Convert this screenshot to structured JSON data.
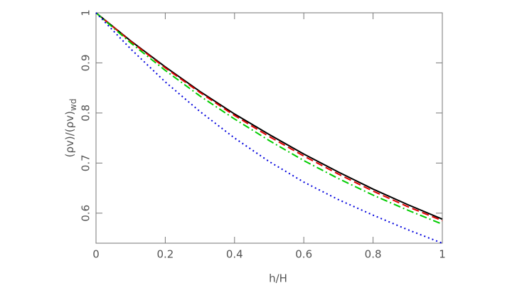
{
  "chart_data": {
    "type": "line",
    "xlabel": "h/H",
    "ylabel": "(ρv)/(ρv)",
    "ylabel_sub": "wd",
    "x": [
      0,
      0.1,
      0.2,
      0.3,
      0.4,
      0.5,
      0.6,
      0.7,
      0.8,
      0.9,
      1
    ],
    "series": [
      {
        "color": "#000000",
        "dash": "none",
        "values": [
          1,
          0.944,
          0.892,
          0.843,
          0.798,
          0.757,
          0.718,
          0.682,
          0.648,
          0.617,
          0.588
        ]
      },
      {
        "color": "#e00000",
        "dash": "10,5",
        "values": [
          1,
          0.943,
          0.89,
          0.841,
          0.795,
          0.753,
          0.714,
          0.678,
          0.644,
          0.613,
          0.585
        ]
      },
      {
        "color": "#00cc00",
        "dash": "10,4,2,4",
        "values": [
          1,
          0.94,
          0.885,
          0.834,
          0.788,
          0.745,
          0.705,
          0.669,
          0.636,
          0.606,
          0.578
        ]
      },
      {
        "color": "#0000dd",
        "dash": "2,4",
        "values": [
          1,
          0.928,
          0.862,
          0.803,
          0.75,
          0.703,
          0.662,
          0.627,
          0.596,
          0.567,
          0.54
        ]
      }
    ],
    "xlim": [
      0,
      1
    ],
    "xticks": [
      0,
      0.2,
      0.4,
      0.6,
      0.8,
      1
    ],
    "ylim": [
      0.54,
      1
    ],
    "yticks": [
      0.6,
      0.7,
      0.8,
      0.9,
      1
    ]
  }
}
